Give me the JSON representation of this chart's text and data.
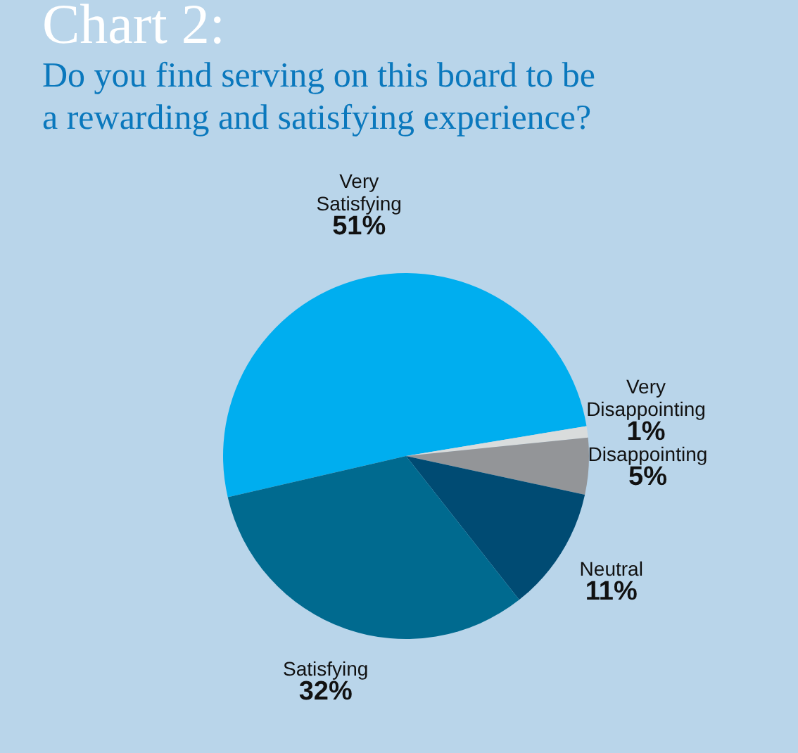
{
  "chart_data": {
    "type": "pie",
    "title": "Chart 2:",
    "subtitle": "Do you find serving on this board to be a rewarding and satisfying experience?",
    "categories": [
      "Very Satisfying",
      "Very Disappointing",
      "Disappointing",
      "Neutral",
      "Satisfying"
    ],
    "values": [
      51,
      1,
      5,
      11,
      32
    ],
    "value_labels": [
      "51%",
      "1%",
      "5%",
      "11%",
      "32%"
    ],
    "colors": [
      "#00aeef",
      "#d9dcdc",
      "#939598",
      "#004b73",
      "#006a8f"
    ],
    "legend": false
  }
}
